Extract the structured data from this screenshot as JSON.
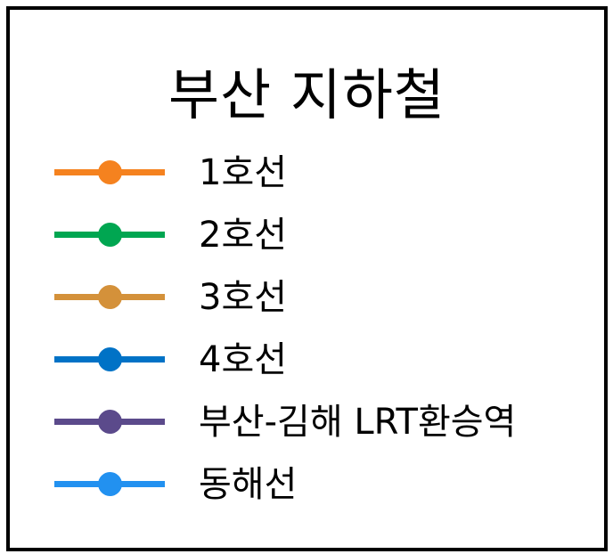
{
  "legend": {
    "title": "부산 지하철",
    "items": [
      {
        "label": "1호선",
        "color": "#F5821F"
      },
      {
        "label": "2호선",
        "color": "#00A651"
      },
      {
        "label": "3호선",
        "color": "#D4913A"
      },
      {
        "label": "4호선",
        "color": "#0072C6"
      },
      {
        "label": "부산-김해 LRT환승역",
        "color": "#5B4A8B"
      },
      {
        "label": "동해선",
        "color": "#2291F0"
      }
    ]
  }
}
